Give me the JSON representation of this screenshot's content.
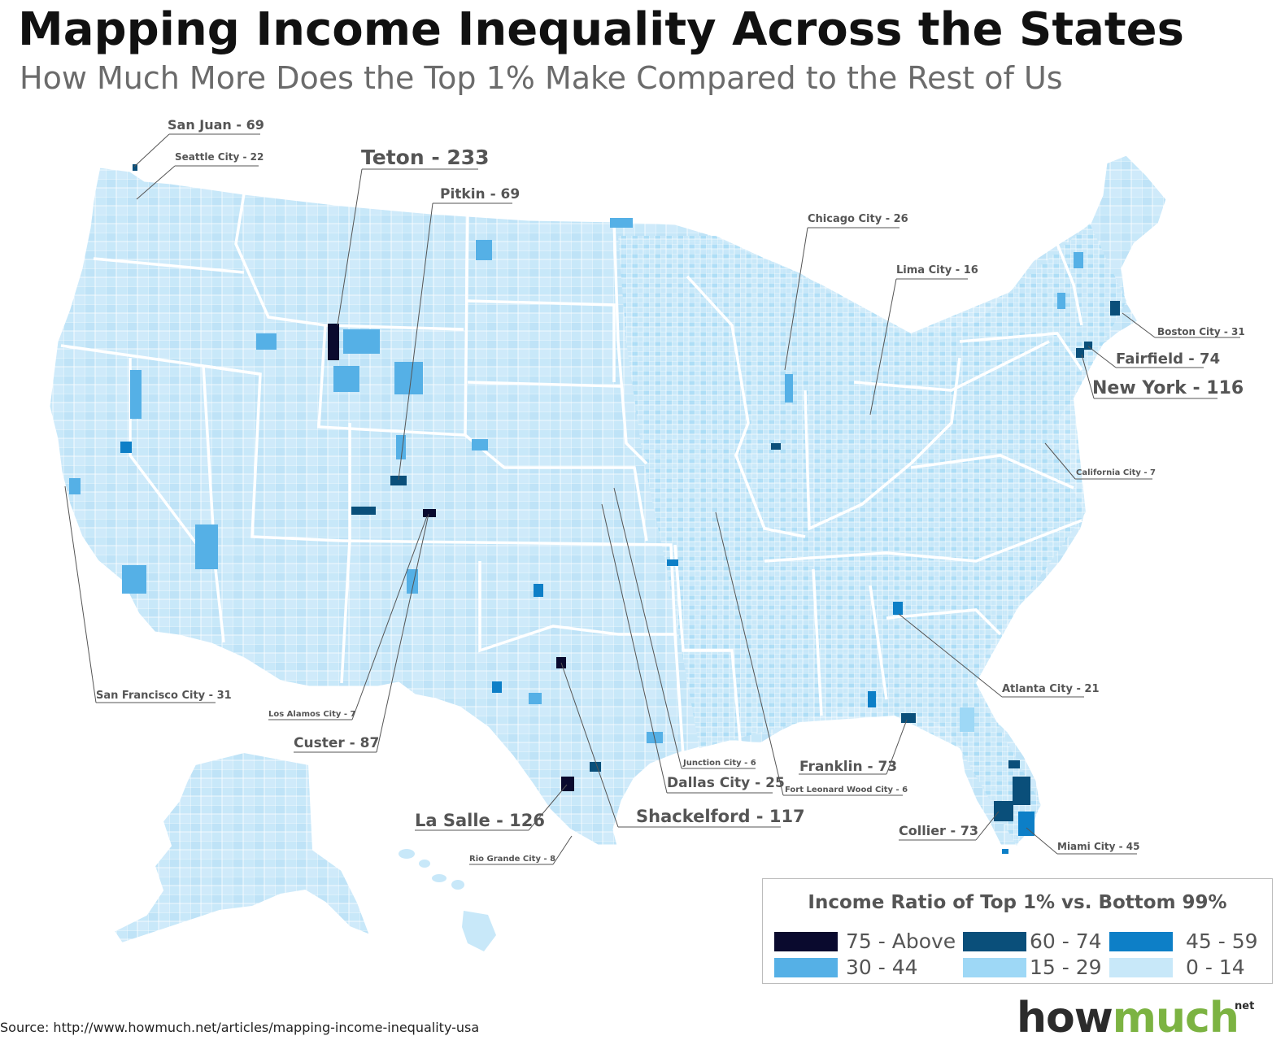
{
  "title": "Mapping Income Inequality Across the States",
  "subtitle": "How Much More Does the Top 1% Make Compared to the Rest of Us",
  "legend": {
    "title": "Income Ratio of Top 1% vs. Bottom 99%",
    "items": [
      {
        "label": "75 - Above",
        "color": "#0a0a2e"
      },
      {
        "label": "60 - 74",
        "color": "#0a4f7a"
      },
      {
        "label": "45 - 59",
        "color": "#0d7fc7"
      },
      {
        "label": "30 - 44",
        "color": "#55b0e6"
      },
      {
        "label": "15 - 29",
        "color": "#9ed8f6"
      },
      {
        "label": "0 - 14",
        "color": "#c8e8f9"
      }
    ]
  },
  "annotations": [
    {
      "id": "san-juan",
      "text": "San Juan - 69",
      "value": 69
    },
    {
      "id": "seattle",
      "text": "Seattle City - 22",
      "value": 22
    },
    {
      "id": "teton",
      "text": "Teton - 233",
      "value": 233
    },
    {
      "id": "pitkin",
      "text": "Pitkin - 69",
      "value": 69
    },
    {
      "id": "chicago",
      "text": "Chicago City - 26",
      "value": 26
    },
    {
      "id": "lima",
      "text": "Lima City - 16",
      "value": 16
    },
    {
      "id": "boston",
      "text": "Boston City - 31",
      "value": 31
    },
    {
      "id": "fairfield",
      "text": "Fairfield - 74",
      "value": 74
    },
    {
      "id": "new-york",
      "text": "New York - 116",
      "value": 116
    },
    {
      "id": "california-city",
      "text": "California City - 7",
      "value": 7
    },
    {
      "id": "atlanta",
      "text": "Atlanta City - 21",
      "value": 21
    },
    {
      "id": "san-francisco",
      "text": "San Francisco City - 31",
      "value": 31
    },
    {
      "id": "los-alamos",
      "text": "Los Alamos City - 7",
      "value": 7
    },
    {
      "id": "custer",
      "text": "Custer - 87",
      "value": 87
    },
    {
      "id": "junction",
      "text": "Junction City - 6",
      "value": 6
    },
    {
      "id": "dallas",
      "text": "Dallas City - 25",
      "value": 25
    },
    {
      "id": "fort-leonard-wood",
      "text": "Fort Leonard Wood City - 6",
      "value": 6
    },
    {
      "id": "franklin",
      "text": "Franklin - 73",
      "value": 73
    },
    {
      "id": "la-salle",
      "text": "La Salle - 126",
      "value": 126
    },
    {
      "id": "shackelford",
      "text": "Shackelford - 117",
      "value": 117
    },
    {
      "id": "collier",
      "text": "Collier - 73",
      "value": 73
    },
    {
      "id": "miami",
      "text": "Miami City - 45",
      "value": 45
    },
    {
      "id": "rio-grande",
      "text": "Rio Grande City - 8",
      "value": 8
    }
  ],
  "source": "Source: http://www.howmuch.net/articles/mapping-income-inequality-usa",
  "logo": {
    "how": "how",
    "much": "much",
    "net": "net"
  }
}
